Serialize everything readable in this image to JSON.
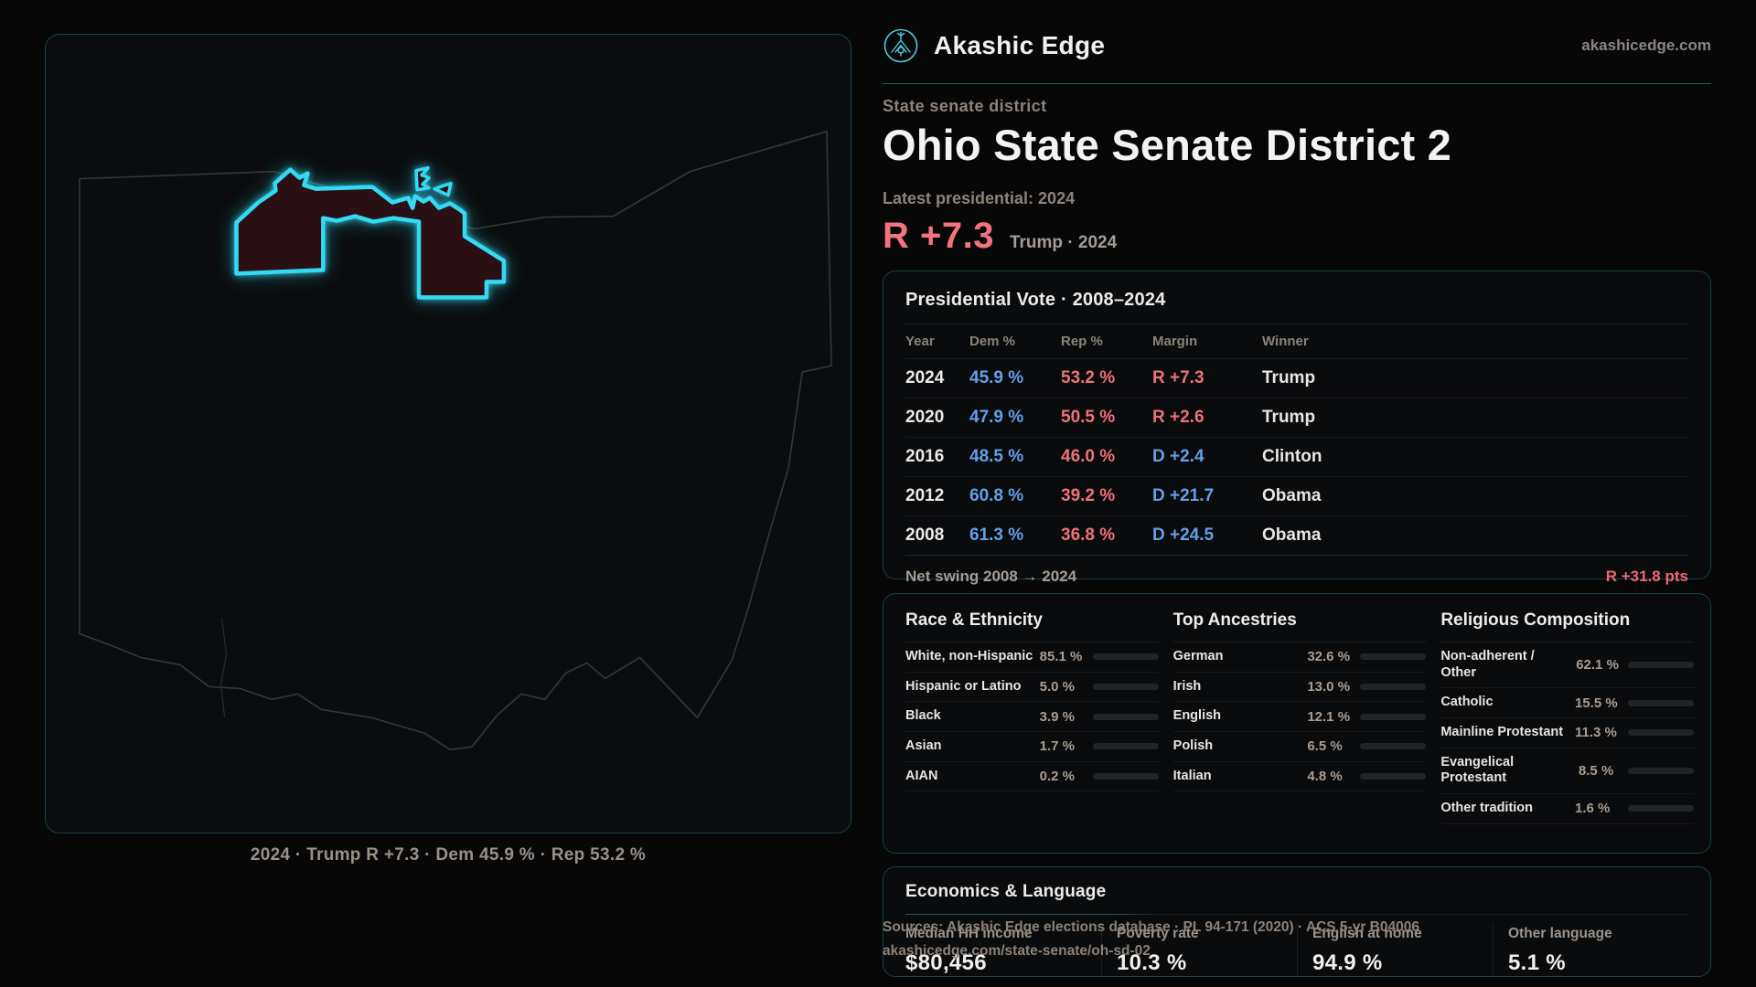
{
  "colors": {
    "accent": "#35daf2",
    "dem": "#63a0ea",
    "rep": "#ed7279",
    "bar_track": "#222327"
  },
  "brand": {
    "name": "Akashic Edge",
    "domain": "akashicedge.com"
  },
  "hero": {
    "kicker": "State senate district",
    "title": "Ohio State Senate District 2",
    "latest_label": "Latest presidential: 2024",
    "margin": "R +7.3",
    "margin_context": "Trump · 2024"
  },
  "map": {
    "caption": "2024 · Trump R +7.3 · Dem 45.9 % · Rep 53.2 %"
  },
  "presidential": {
    "title": "Presidential Vote · 2008–2024",
    "columns": [
      "Year",
      "Dem %",
      "Rep %",
      "Margin",
      "Winner"
    ],
    "rows": [
      {
        "year": "2024",
        "dem": "45.9 %",
        "rep": "53.2 %",
        "margin": "R +7.3",
        "party": "R",
        "winner": "Trump"
      },
      {
        "year": "2020",
        "dem": "47.9 %",
        "rep": "50.5 %",
        "margin": "R +2.6",
        "party": "R",
        "winner": "Trump"
      },
      {
        "year": "2016",
        "dem": "48.5 %",
        "rep": "46.0 %",
        "margin": "D +2.4",
        "party": "D",
        "winner": "Clinton"
      },
      {
        "year": "2012",
        "dem": "60.8 %",
        "rep": "39.2 %",
        "margin": "D +21.7",
        "party": "D",
        "winner": "Obama"
      },
      {
        "year": "2008",
        "dem": "61.3 %",
        "rep": "36.8 %",
        "margin": "D +24.5",
        "party": "D",
        "winner": "Obama"
      }
    ],
    "footer_label": "Net swing 2008 → 2024",
    "footer_value": "R +31.8 pts"
  },
  "demographics": [
    {
      "title": "Race & Ethnicity",
      "rows": [
        {
          "label": "White, non-Hispanic",
          "value": "85.1 %",
          "pct": 85.1,
          "color": "#93a7c4"
        },
        {
          "label": "Hispanic or Latino",
          "value": "5.0 %",
          "pct": 5.0,
          "color": "#e8a13c"
        },
        {
          "label": "Black",
          "value": "3.9 %",
          "pct": 3.9,
          "color": "#9f7de8"
        },
        {
          "label": "Asian",
          "value": "1.7 %",
          "pct": 1.7,
          "color": "#2ecc8f"
        },
        {
          "label": "AIAN",
          "value": "0.2 %",
          "pct": 0.2,
          "color": "#93a7c4"
        }
      ]
    },
    {
      "title": "Top Ancestries",
      "rows": [
        {
          "label": "German",
          "value": "32.6 %",
          "pct": 32.6,
          "color": "#93a7c4"
        },
        {
          "label": "Irish",
          "value": "13.0 %",
          "pct": 13.0,
          "color": "#93a7c4"
        },
        {
          "label": "English",
          "value": "12.1 %",
          "pct": 12.1,
          "color": "#93a7c4"
        },
        {
          "label": "Polish",
          "value": "6.5 %",
          "pct": 6.5,
          "color": "#93a7c4"
        },
        {
          "label": "Italian",
          "value": "4.8 %",
          "pct": 4.8,
          "color": "#93a7c4"
        }
      ]
    },
    {
      "title": "Religious Composition",
      "rows": [
        {
          "label": "Non-adherent / Other",
          "value": "62.1 %",
          "pct": 62.1,
          "color": "#737c90"
        },
        {
          "label": "Catholic",
          "value": "15.5 %",
          "pct": 15.5,
          "color": "#e3b23e"
        },
        {
          "label": "Mainline Protestant",
          "value": "11.3 %",
          "pct": 11.3,
          "color": "#5d8fd8"
        },
        {
          "label": "Evangelical Protestant",
          "value": "8.5 %",
          "pct": 8.5,
          "color": "#dd6f6f"
        },
        {
          "label": "Other tradition",
          "value": "1.6 %",
          "pct": 1.6,
          "color": "#d8dadf"
        }
      ]
    }
  ],
  "economics": {
    "title": "Economics & Language",
    "stats": [
      {
        "label": "Median HH income",
        "value": "$80,456"
      },
      {
        "label": "Poverty rate",
        "value": "10.3 %"
      },
      {
        "label": "English at home",
        "value": "94.9 %"
      },
      {
        "label": "Other language",
        "value": "5.1 %"
      }
    ]
  },
  "sources": {
    "line1": "Sources: Akashic Edge elections database · PL 94-171 (2020) · ACS 5-yr B04006",
    "line2": "akashicedge.com/state-senate/oh-sd-02"
  }
}
